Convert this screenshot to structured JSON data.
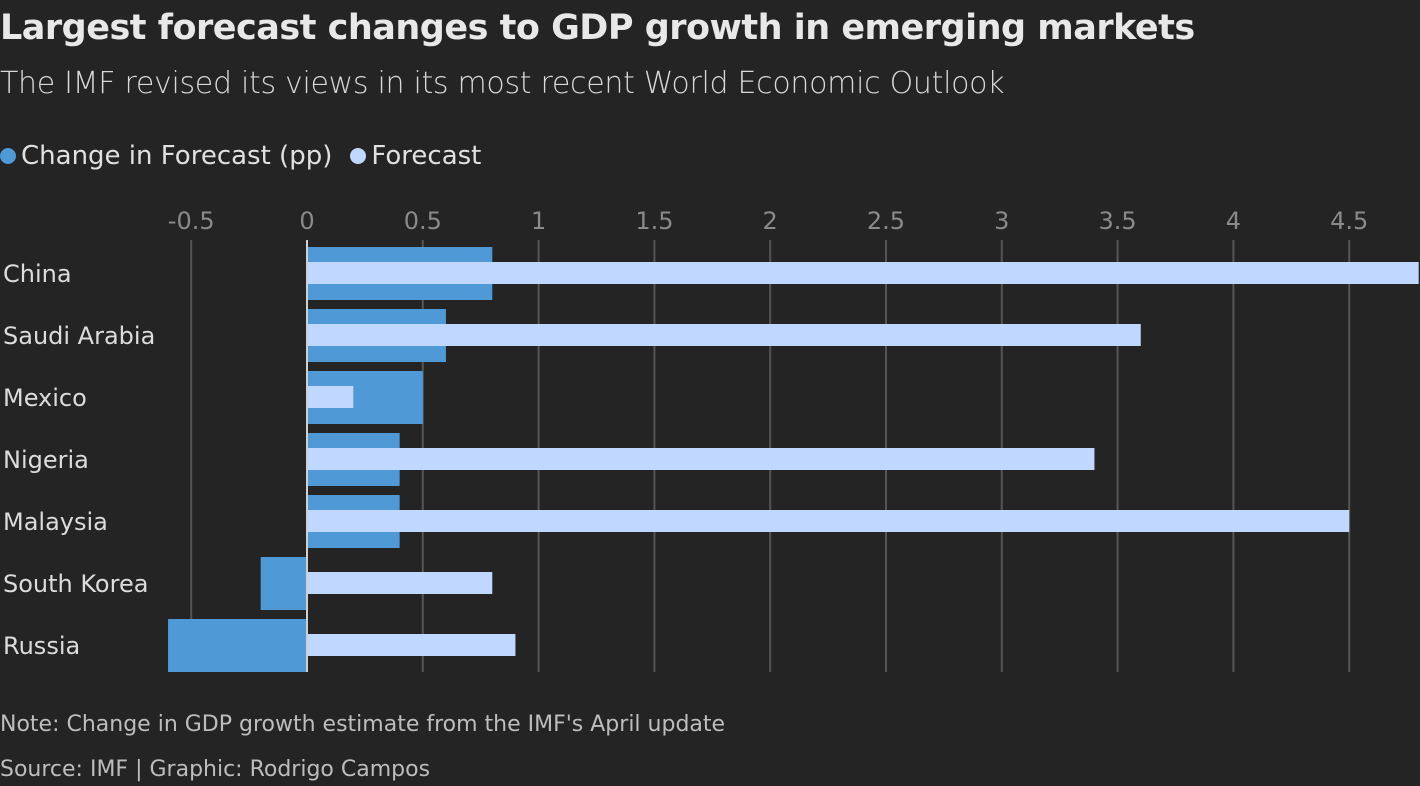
{
  "title": "Largest forecast changes to GDP growth in emerging markets",
  "subtitle": "The IMF revised its views in its most recent World Economic Outlook",
  "note": "Note: Change in GDP growth estimate from the IMF's April update",
  "source": "Source: IMF | Graphic: Rodrigo Campos",
  "chart_data": {
    "type": "bar",
    "orientation": "horizontal",
    "categories": [
      "China",
      "Saudi Arabia",
      "Mexico",
      "Nigeria",
      "Malaysia",
      "South Korea",
      "Russia"
    ],
    "series": [
      {
        "name": "Change in Forecast (pp)",
        "color": "#4f99d6",
        "values": [
          0.8,
          0.6,
          0.5,
          0.4,
          0.4,
          -0.2,
          -0.6
        ]
      },
      {
        "name": "Forecast",
        "color": "#c0d7ff",
        "values": [
          4.8,
          3.6,
          0.2,
          3.4,
          4.5,
          0.8,
          0.9
        ]
      }
    ],
    "xlim": [
      -0.6,
      4.8
    ],
    "xticks": [
      "-0.5",
      "0",
      "0.5",
      "1",
      "1.5",
      "2",
      "2.5",
      "3",
      "3.5",
      "4",
      "4.5"
    ],
    "xtick_values": [
      -0.5,
      0,
      0.5,
      1,
      1.5,
      2,
      2.5,
      3,
      3.5,
      4,
      4.5
    ],
    "grid": true,
    "legend_position": "top-left"
  }
}
